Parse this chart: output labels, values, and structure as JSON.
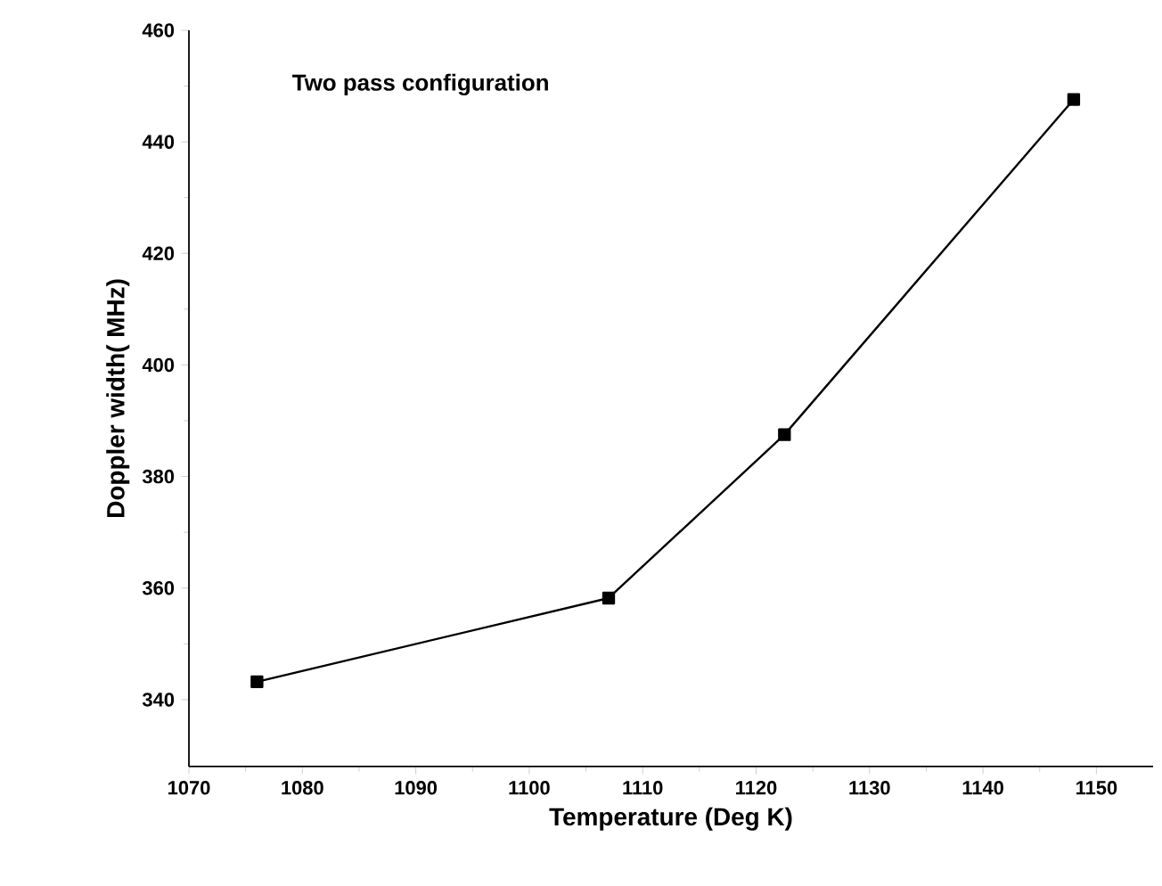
{
  "chart_data": {
    "type": "line",
    "title": "Two pass configuration",
    "xlabel": "Temperature (Deg K)",
    "ylabel": "Doppler width( MHz)",
    "x": [
      1076,
      1107,
      1122.5,
      1148
    ],
    "series": [
      {
        "color": "#000000",
        "values": [
          343.2,
          358.2,
          387.5,
          447.6
        ]
      }
    ],
    "xlim": [
      1070,
      1155
    ],
    "xticks": [
      1070,
      1080,
      1090,
      1100,
      1110,
      1120,
      1130,
      1140,
      1150
    ],
    "ylim": [
      328,
      460
    ],
    "yticks": [
      340,
      360,
      380,
      400,
      420,
      440,
      460
    ],
    "marker": "square",
    "line_style": "solid",
    "grid": false
  }
}
